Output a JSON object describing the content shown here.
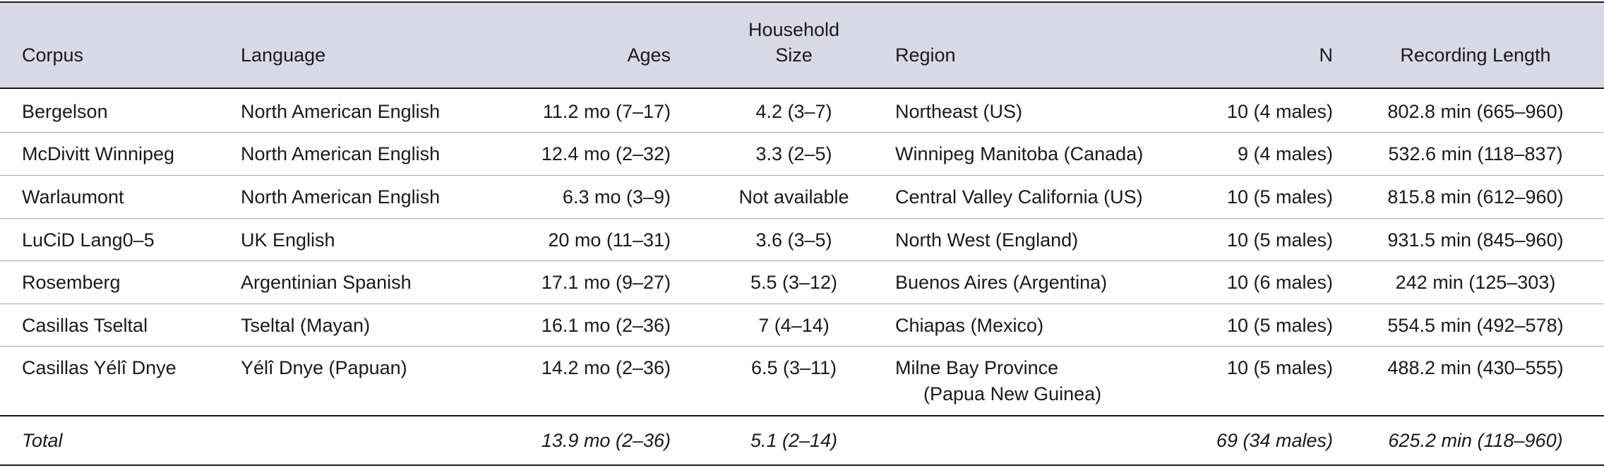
{
  "headers": {
    "corpus": "Corpus",
    "language": "Language",
    "ages": "Ages",
    "household_line1": "Household",
    "household_line2": "Size",
    "region": "Region",
    "n": "N",
    "recording_length": "Recording Length"
  },
  "rows": [
    {
      "corpus": "Bergelson",
      "language": "North American English",
      "ages": "11.2 mo (7–17)",
      "household": "4.2 (3–7)",
      "region": "Northeast (US)",
      "region2": "",
      "n": "10 (4 males)",
      "recording": "802.8 min (665–960)"
    },
    {
      "corpus": "McDivitt Winnipeg",
      "language": "North American English",
      "ages": "12.4 mo (2–32)",
      "household": "3.3 (2–5)",
      "region": "Winnipeg Manitoba (Canada)",
      "region2": "",
      "n": "9 (4 males)",
      "recording": "532.6 min (118–837)"
    },
    {
      "corpus": "Warlaumont",
      "language": "North American English",
      "ages": "6.3 mo (3–9)",
      "household": "Not available",
      "region": "Central Valley California (US)",
      "region2": "",
      "n": "10 (5 males)",
      "recording": "815.8 min (612–960)"
    },
    {
      "corpus": "LuCiD Lang0–5",
      "language": "UK English",
      "ages": "20 mo (11–31)",
      "household": "3.6 (3–5)",
      "region": "North West (England)",
      "region2": "",
      "n": "10 (5 males)",
      "recording": "931.5 min (845–960)"
    },
    {
      "corpus": "Rosemberg",
      "language": "Argentinian Spanish",
      "ages": "17.1 mo (9–27)",
      "household": "5.5 (3–12)",
      "region": "Buenos Aires (Argentina)",
      "region2": "",
      "n": "10 (6 males)",
      "recording": "242 min (125–303)"
    },
    {
      "corpus": "Casillas Tseltal",
      "language": "Tseltal (Mayan)",
      "ages": "16.1 mo (2–36)",
      "household": "7 (4–14)",
      "region": "Chiapas (Mexico)",
      "region2": "",
      "n": "10 (5 males)",
      "recording": "554.5 min (492–578)"
    },
    {
      "corpus": "Casillas Yélî Dnye",
      "language": "Yélî Dnye (Papuan)",
      "ages": "14.2 mo (2–36)",
      "household": "6.5 (3–11)",
      "region": "Milne Bay Province",
      "region2": "(Papua New Guinea)",
      "n": "10 (5 males)",
      "recording": "488.2 min (430–555)"
    }
  ],
  "total": {
    "label": "Total",
    "ages": "13.9 mo (2–36)",
    "household": "5.1 (2–14)",
    "n": "69 (34 males)",
    "recording": "625.2 min (118–960)"
  }
}
